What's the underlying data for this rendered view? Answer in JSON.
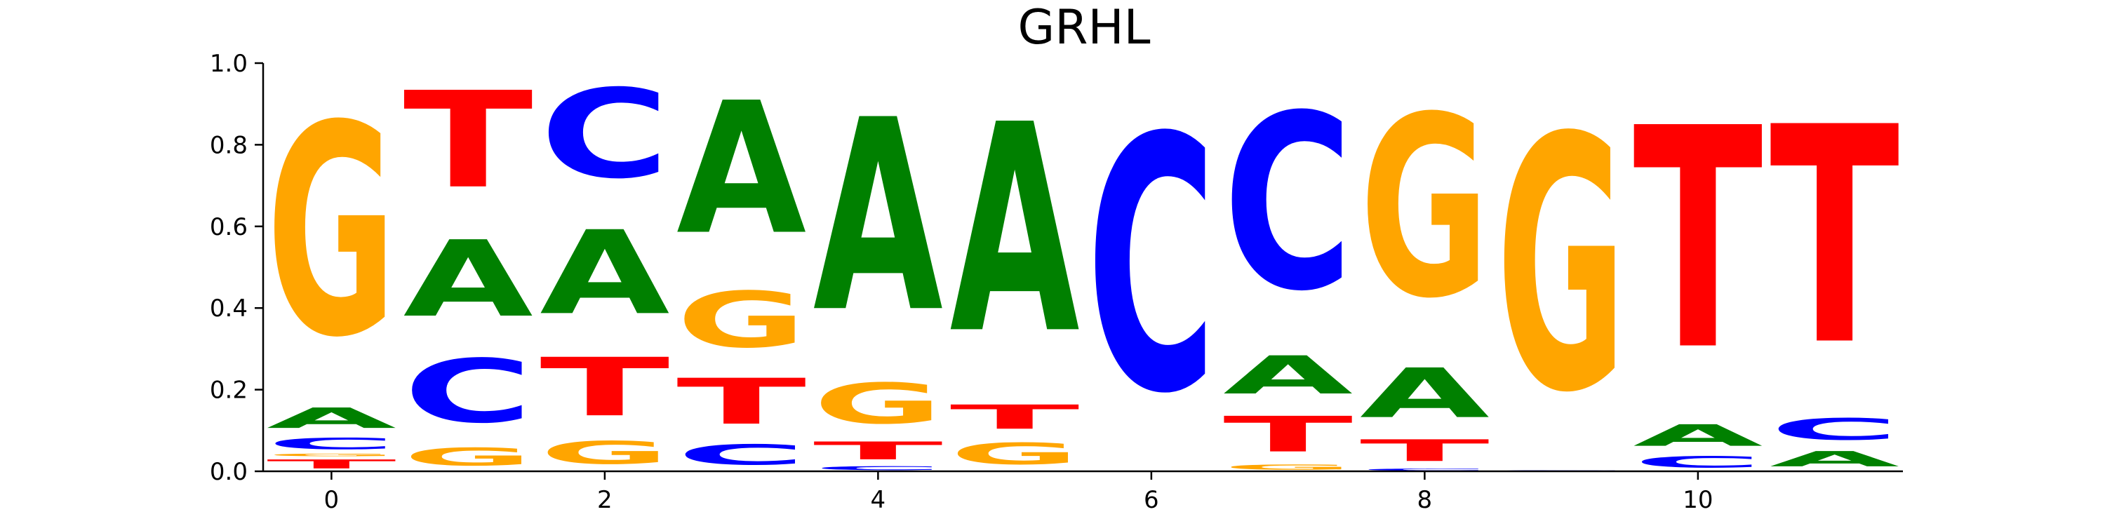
{
  "chart_data": {
    "type": "sequence-logo",
    "title": "GRHL",
    "xlabel": "",
    "ylabel": "",
    "ylim": [
      0,
      1.0
    ],
    "xlim": [
      -0.5,
      11.5
    ],
    "y_ticks": [
      "0.0",
      "0.2",
      "0.4",
      "0.6",
      "0.8",
      "1.0"
    ],
    "x_ticks": [
      "0",
      "2",
      "4",
      "6",
      "8",
      "10"
    ],
    "colors": {
      "A": "#008000",
      "C": "#0000ff",
      "G": "#ffa500",
      "T": "#ff0000"
    },
    "positions": [
      {
        "x": 0,
        "letters": [
          {
            "base": "T",
            "height": 0.035
          },
          {
            "base": "G",
            "height": 0.01
          },
          {
            "base": "C",
            "height": 0.045
          },
          {
            "base": "A",
            "height": 0.08
          },
          {
            "base": "G",
            "height": 0.83
          }
        ]
      },
      {
        "x": 1,
        "letters": [
          {
            "base": "G",
            "height": 0.07
          },
          {
            "base": "C",
            "height": 0.25
          },
          {
            "base": "A",
            "height": 0.3
          },
          {
            "base": "T",
            "height": 0.38
          }
        ]
      },
      {
        "x": 2,
        "letters": [
          {
            "base": "G",
            "height": 0.09
          },
          {
            "base": "T",
            "height": 0.23
          },
          {
            "base": "A",
            "height": 0.33
          },
          {
            "base": "C",
            "height": 0.35
          }
        ]
      },
      {
        "x": 3,
        "letters": [
          {
            "base": "C",
            "height": 0.08
          },
          {
            "base": "T",
            "height": 0.18
          },
          {
            "base": "G",
            "height": 0.22
          },
          {
            "base": "A",
            "height": 0.52
          }
        ]
      },
      {
        "x": 4,
        "letters": [
          {
            "base": "C",
            "height": 0.015
          },
          {
            "base": "T",
            "height": 0.07
          },
          {
            "base": "G",
            "height": 0.16
          },
          {
            "base": "A",
            "height": 0.755
          }
        ]
      },
      {
        "x": 5,
        "letters": [
          {
            "base": "G",
            "height": 0.085
          },
          {
            "base": "T",
            "height": 0.095
          },
          {
            "base": "A",
            "height": 0.82
          }
        ]
      },
      {
        "x": 6,
        "letters": [
          {
            "base": "C",
            "height": 1.0
          }
        ]
      },
      {
        "x": 7,
        "letters": [
          {
            "base": "G",
            "height": 0.02
          },
          {
            "base": "T",
            "height": 0.14
          },
          {
            "base": "A",
            "height": 0.15
          },
          {
            "base": "C",
            "height": 0.69
          }
        ]
      },
      {
        "x": 8,
        "letters": [
          {
            "base": "C",
            "height": 0.008
          },
          {
            "base": "T",
            "height": 0.085
          },
          {
            "base": "A",
            "height": 0.195
          },
          {
            "base": "G",
            "height": 0.712
          }
        ]
      },
      {
        "x": 9,
        "letters": [
          {
            "base": "C",
            "height": 0.003
          },
          {
            "base": "G",
            "height": 0.997
          }
        ]
      },
      {
        "x": 10,
        "letters": [
          {
            "base": "C",
            "height": 0.045
          },
          {
            "base": "A",
            "height": 0.085
          },
          {
            "base": "T",
            "height": 0.87
          }
        ]
      },
      {
        "x": 11,
        "letters": [
          {
            "base": "A",
            "height": 0.06
          },
          {
            "base": "C",
            "height": 0.085
          },
          {
            "base": "T",
            "height": 0.855
          }
        ]
      }
    ]
  }
}
